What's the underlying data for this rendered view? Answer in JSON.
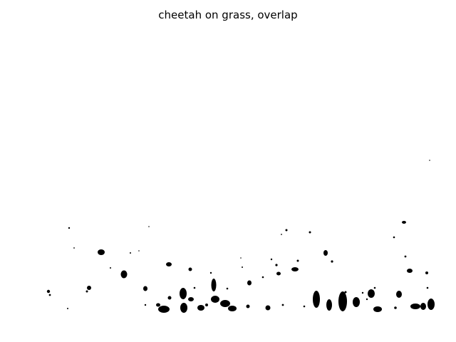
{
  "figure": {
    "title": "cheetah on grass, overlap"
  },
  "image": {
    "description_colors": {
      "background": "#ffffff",
      "foreground": "#000000"
    }
  }
}
